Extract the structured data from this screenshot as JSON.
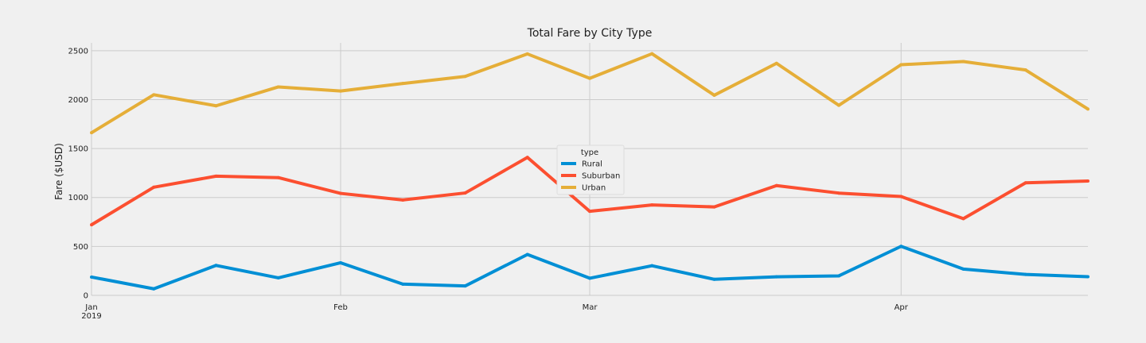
{
  "chart_data": {
    "type": "line",
    "title": "Total Fare by City Type",
    "xlabel": "",
    "ylabel": "Fare ($USD)",
    "x": [
      "2019-01-06",
      "2019-01-13",
      "2019-01-20",
      "2019-01-27",
      "2019-02-03",
      "2019-02-10",
      "2019-02-17",
      "2019-02-24",
      "2019-03-03",
      "2019-03-10",
      "2019-03-17",
      "2019-03-24",
      "2019-03-31",
      "2019-04-07",
      "2019-04-14",
      "2019-04-21",
      "2019-04-28"
    ],
    "xlim": [
      "2019-01-06",
      "2019-04-28"
    ],
    "x_ticks": [
      {
        "date": "2019-01-06",
        "label": "Jan",
        "sublabel": "2019"
      },
      {
        "date": "2019-02-03",
        "label": "Feb",
        "sublabel": ""
      },
      {
        "date": "2019-03-03",
        "label": "Mar",
        "sublabel": ""
      },
      {
        "date": "2019-04-07",
        "label": "Apr",
        "sublabel": ""
      }
    ],
    "ylim": [
      0,
      2580
    ],
    "y_ticks": [
      0,
      500,
      1000,
      1500,
      2000,
      2500
    ],
    "grid": true,
    "legend": {
      "title": "type",
      "position": "center"
    },
    "series": [
      {
        "name": "Rural",
        "color": "#008fd5",
        "values": [
          187,
          67,
          306,
          179,
          333,
          115,
          96,
          418,
          175,
          303,
          164,
          190,
          199,
          501,
          269,
          214,
          191
        ]
      },
      {
        "name": "Suburban",
        "color": "#fc4f30",
        "values": [
          721,
          1105,
          1218,
          1203,
          1042,
          975,
          1046,
          1410,
          859,
          924,
          904,
          1122,
          1045,
          1010,
          784,
          1150,
          1168
        ]
      },
      {
        "name": "Urban",
        "color": "#e5ae38",
        "values": [
          1662,
          2050,
          1937,
          2130,
          2088,
          2165,
          2237,
          2467,
          2218,
          2469,
          2045,
          2371,
          1942,
          2357,
          2389,
          2303,
          1904
        ]
      }
    ]
  }
}
